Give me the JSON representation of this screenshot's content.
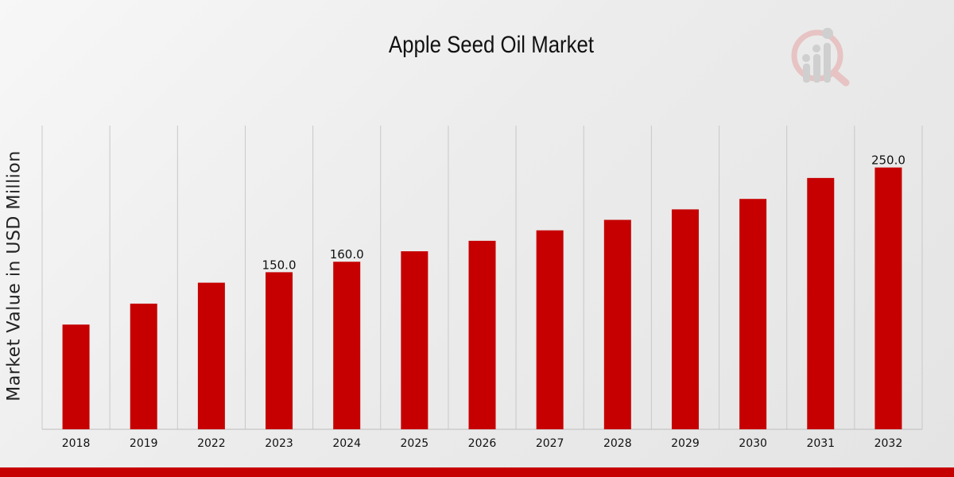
{
  "colors": {
    "bar": "#c60000",
    "accent": "#c60000",
    "grid": "#c8c8c8",
    "axis": "#bdbdbd"
  },
  "logo": {
    "icon": "magnifier-bar-chart-logo-icon"
  },
  "chart_data": {
    "type": "bar",
    "title": "Apple Seed Oil Market",
    "xlabel": "",
    "ylabel": "Market Value in USD Million",
    "categories": [
      "2018",
      "2019",
      "2022",
      "2023",
      "2024",
      "2025",
      "2026",
      "2027",
      "2028",
      "2029",
      "2030",
      "2031",
      "2032"
    ],
    "values": [
      100,
      120,
      140,
      150,
      160,
      170,
      180,
      190,
      200,
      210,
      220,
      240,
      250
    ],
    "data_labels": [
      null,
      null,
      null,
      "150.0",
      "160.0",
      null,
      null,
      null,
      null,
      null,
      null,
      null,
      "250.0"
    ],
    "ylim": [
      0,
      290
    ],
    "grid": "vertical",
    "legend": "none"
  }
}
